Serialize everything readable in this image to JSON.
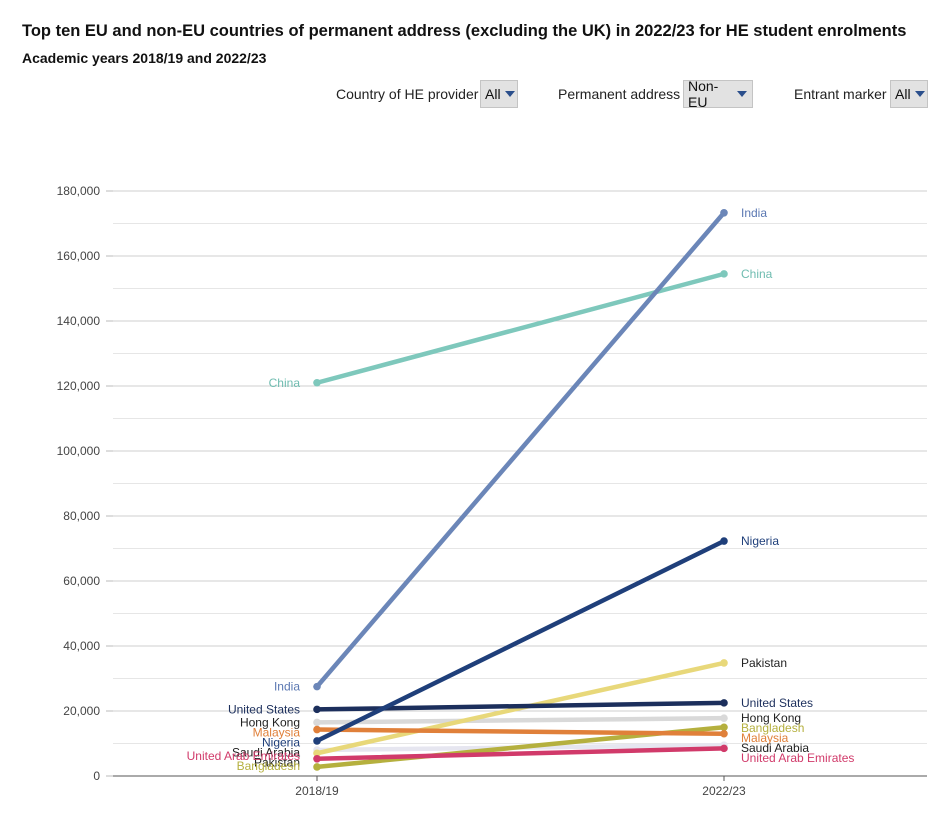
{
  "header": {
    "title": "Top ten EU and non-EU countries of permanent address (excluding the UK) in 2022/23 for HE student enrolments",
    "subtitle": "Academic years 2018/19 and 2022/23"
  },
  "filters": {
    "provider_label": "Country of HE provider",
    "provider_value": "All",
    "address_label": "Permanent address",
    "address_value": "Non-EU",
    "entrant_label": "Entrant marker",
    "entrant_value": "All"
  },
  "colors": {
    "grid": "#d0d0d0",
    "axis": "#555555"
  },
  "chart_data": {
    "type": "line",
    "title": "Top ten EU and non-EU countries of permanent address (excluding the UK) in 2022/23 for HE student enrolments",
    "subtitle": "Academic years 2018/19 and 2022/23",
    "categories": [
      "2018/19",
      "2022/23"
    ],
    "ylim": [
      0,
      180000
    ],
    "yticks": [
      0,
      20000,
      40000,
      60000,
      80000,
      100000,
      120000,
      140000,
      160000,
      180000
    ],
    "ytick_labels": [
      "0",
      "20,000",
      "40,000",
      "60,000",
      "80,000",
      "100,000",
      "120,000",
      "140,000",
      "160,000",
      "180,000"
    ],
    "grid": true,
    "series": [
      {
        "name": "China",
        "values": [
          121000,
          154500
        ],
        "color": "#7ec8bc",
        "label_color": "#6fbcb0"
      },
      {
        "name": "India",
        "values": [
          27500,
          173300
        ],
        "color": "#6b86b8",
        "label_color": "#5b78b2"
      },
      {
        "name": "Nigeria",
        "values": [
          10800,
          72300
        ],
        "color": "#1f3f7a",
        "label_color": "#1f3f7a"
      },
      {
        "name": "Pakistan",
        "values": [
          7000,
          34800
        ],
        "color": "#e8d87a",
        "label_color": "#222222"
      },
      {
        "name": "United States",
        "values": [
          20500,
          22500
        ],
        "color": "#1c2f5c",
        "label_color": "#1c2f5c"
      },
      {
        "name": "Hong Kong",
        "values": [
          16500,
          17800
        ],
        "color": "#d9d9d9",
        "label_color": "#222222"
      },
      {
        "name": "Bangladesh",
        "values": [
          2800,
          15000
        ],
        "color": "#b5b03e",
        "label_color": "#b5b03e"
      },
      {
        "name": "Malaysia",
        "values": [
          14300,
          13000
        ],
        "color": "#e0803a",
        "label_color": "#e0803a"
      },
      {
        "name": "Saudi Arabia",
        "values": [
          8000,
          9500
        ],
        "color": "#e6e6f0",
        "label_color": "#222222"
      },
      {
        "name": "United Arab Emirates",
        "values": [
          5300,
          8500
        ],
        "color": "#d13a6a",
        "label_color": "#d13a6a"
      }
    ]
  }
}
